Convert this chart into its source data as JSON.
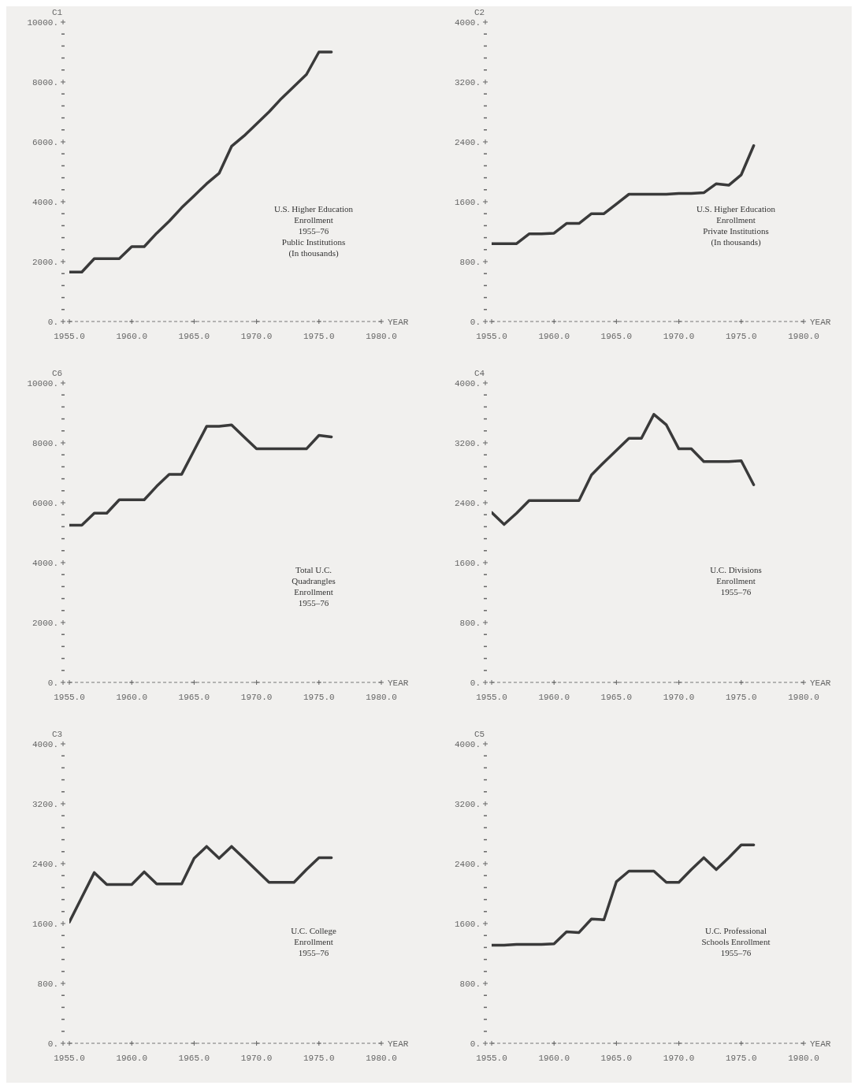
{
  "chart_data": [
    {
      "type": "line",
      "ylabel": "C1",
      "xlabel": "YEAR",
      "annotations": [
        "U.S. Higher Education",
        "Enrollment",
        "1955–76",
        "Public Institutions",
        "(In thousands)"
      ],
      "x": [
        1955,
        1956,
        1957,
        1958,
        1959,
        1960,
        1961,
        1962,
        1963,
        1964,
        1965,
        1966,
        1967,
        1968,
        1969,
        1970,
        1971,
        1972,
        1973,
        1974,
        1975,
        1976
      ],
      "series": [
        {
          "color": "#3a3a3a",
          "values": [
            1650,
            1650,
            2100,
            2100,
            2100,
            2500,
            2500,
            2950,
            3350,
            3800,
            4200,
            4600,
            4950,
            5850,
            6200,
            6600,
            7000,
            7450,
            7850,
            8250,
            9000,
            9000
          ]
        }
      ],
      "xlim": [
        1955,
        1980
      ],
      "xticks": [
        {
          "value": 1955,
          "label": "1955.0"
        },
        {
          "value": 1960,
          "label": "1960.0"
        },
        {
          "value": 1965,
          "label": "1965.0"
        },
        {
          "value": 1970,
          "label": "1970.0"
        },
        {
          "value": 1975,
          "label": "1975.0"
        },
        {
          "value": 1980,
          "label": "1980.0"
        }
      ],
      "ylim": [
        0,
        10000
      ],
      "yticks": [
        {
          "value": 0,
          "label": "0."
        },
        {
          "value": 400,
          "label": null
        },
        {
          "value": 800,
          "label": null
        },
        {
          "value": 1200,
          "label": null
        },
        {
          "value": 1600,
          "label": null
        },
        {
          "value": 2000,
          "label": "2000."
        },
        {
          "value": 2400,
          "label": null
        },
        {
          "value": 2800,
          "label": null
        },
        {
          "value": 3200,
          "label": null
        },
        {
          "value": 3600,
          "label": null
        },
        {
          "value": 4000,
          "label": "4000."
        },
        {
          "value": 4400,
          "label": null
        },
        {
          "value": 4800,
          "label": null
        },
        {
          "value": 5200,
          "label": null
        },
        {
          "value": 5600,
          "label": null
        },
        {
          "value": 6000,
          "label": "6000."
        },
        {
          "value": 6400,
          "label": null
        },
        {
          "value": 6800,
          "label": null
        },
        {
          "value": 7200,
          "label": null
        },
        {
          "value": 7600,
          "label": null
        },
        {
          "value": 8000,
          "label": "8000."
        },
        {
          "value": 8400,
          "label": null
        },
        {
          "value": 8800,
          "label": null
        },
        {
          "value": 9200,
          "label": null
        },
        {
          "value": 9600,
          "label": null
        },
        {
          "value": 10000,
          "label": "10000."
        }
      ]
    },
    {
      "type": "line",
      "ylabel": "C2",
      "xlabel": "YEAR",
      "annotations": [
        "U.S. Higher Education",
        "Enrollment",
        "Private Institutions",
        "(In thousands)"
      ],
      "x": [
        1955,
        1956,
        1957,
        1958,
        1959,
        1960,
        1961,
        1962,
        1963,
        1964,
        1965,
        1966,
        1967,
        1968,
        1969,
        1970,
        1971,
        1972,
        1973,
        1974,
        1975,
        1976
      ],
      "series": [
        {
          "color": "#3a3a3a",
          "values": [
            1040,
            1040,
            1040,
            1170,
            1170,
            1180,
            1310,
            1310,
            1440,
            1440,
            1570,
            1700,
            1700,
            1700,
            1700,
            1710,
            1710,
            1720,
            1840,
            1820,
            1960,
            2350
          ]
        }
      ],
      "xlim": [
        1955,
        1980
      ],
      "xticks": [
        {
          "value": 1955,
          "label": "1955.0"
        },
        {
          "value": 1960,
          "label": "1960.0"
        },
        {
          "value": 1965,
          "label": "1965.0"
        },
        {
          "value": 1970,
          "label": "1970.0"
        },
        {
          "value": 1975,
          "label": "1975.0"
        },
        {
          "value": 1980,
          "label": "1980.0"
        }
      ],
      "ylim": [
        0,
        4000
      ],
      "yticks": [
        {
          "value": 0,
          "label": "0."
        },
        {
          "value": 160,
          "label": null
        },
        {
          "value": 320,
          "label": null
        },
        {
          "value": 480,
          "label": null
        },
        {
          "value": 640,
          "label": null
        },
        {
          "value": 800,
          "label": "800."
        },
        {
          "value": 960,
          "label": null
        },
        {
          "value": 1120,
          "label": null
        },
        {
          "value": 1280,
          "label": null
        },
        {
          "value": 1440,
          "label": null
        },
        {
          "value": 1600,
          "label": "1600."
        },
        {
          "value": 1760,
          "label": null
        },
        {
          "value": 1920,
          "label": null
        },
        {
          "value": 2080,
          "label": null
        },
        {
          "value": 2240,
          "label": null
        },
        {
          "value": 2400,
          "label": "2400."
        },
        {
          "value": 2560,
          "label": null
        },
        {
          "value": 2720,
          "label": null
        },
        {
          "value": 2880,
          "label": null
        },
        {
          "value": 3040,
          "label": null
        },
        {
          "value": 3200,
          "label": "3200."
        },
        {
          "value": 3360,
          "label": null
        },
        {
          "value": 3520,
          "label": null
        },
        {
          "value": 3680,
          "label": null
        },
        {
          "value": 3840,
          "label": null
        },
        {
          "value": 4000,
          "label": "4000."
        }
      ]
    },
    {
      "type": "line",
      "ylabel": "C6",
      "xlabel": "YEAR",
      "annotations": [
        "Total U.C.",
        "Quadrangles",
        "Enrollment",
        "1955–76"
      ],
      "x": [
        1955,
        1956,
        1957,
        1958,
        1959,
        1960,
        1961,
        1962,
        1963,
        1964,
        1965,
        1966,
        1967,
        1968,
        1969,
        1970,
        1971,
        1972,
        1973,
        1974,
        1975,
        1976
      ],
      "series": [
        {
          "color": "#3a3a3a",
          "values": [
            5250,
            5250,
            5650,
            5650,
            6100,
            6100,
            6100,
            6550,
            6950,
            6950,
            7750,
            8550,
            8550,
            8600,
            8200,
            7800,
            7800,
            7800,
            7800,
            7800,
            8250,
            8200
          ]
        }
      ],
      "xlim": [
        1955,
        1980
      ],
      "xticks": [
        {
          "value": 1955,
          "label": "1955.0"
        },
        {
          "value": 1960,
          "label": "1960.0"
        },
        {
          "value": 1965,
          "label": "1965.0"
        },
        {
          "value": 1970,
          "label": "1970.0"
        },
        {
          "value": 1975,
          "label": "1975.0"
        },
        {
          "value": 1980,
          "label": "1980.0"
        }
      ],
      "ylim": [
        0,
        10000
      ],
      "yticks": [
        {
          "value": 0,
          "label": "0."
        },
        {
          "value": 400,
          "label": null
        },
        {
          "value": 800,
          "label": null
        },
        {
          "value": 1200,
          "label": null
        },
        {
          "value": 1600,
          "label": null
        },
        {
          "value": 2000,
          "label": "2000."
        },
        {
          "value": 2400,
          "label": null
        },
        {
          "value": 2800,
          "label": null
        },
        {
          "value": 3200,
          "label": null
        },
        {
          "value": 3600,
          "label": null
        },
        {
          "value": 4000,
          "label": "4000."
        },
        {
          "value": 4400,
          "label": null
        },
        {
          "value": 4800,
          "label": null
        },
        {
          "value": 5200,
          "label": null
        },
        {
          "value": 5600,
          "label": null
        },
        {
          "value": 6000,
          "label": "6000."
        },
        {
          "value": 6400,
          "label": null
        },
        {
          "value": 6800,
          "label": null
        },
        {
          "value": 7200,
          "label": null
        },
        {
          "value": 7600,
          "label": null
        },
        {
          "value": 8000,
          "label": "8000."
        },
        {
          "value": 8400,
          "label": null
        },
        {
          "value": 8800,
          "label": null
        },
        {
          "value": 9200,
          "label": null
        },
        {
          "value": 9600,
          "label": null
        },
        {
          "value": 10000,
          "label": "10000."
        }
      ]
    },
    {
      "type": "line",
      "ylabel": "C4",
      "xlabel": "YEAR",
      "annotations": [
        "U.C. Divisions",
        "Enrollment",
        "1955–76"
      ],
      "x": [
        1955,
        1956,
        1957,
        1958,
        1959,
        1960,
        1961,
        1962,
        1963,
        1964,
        1965,
        1966,
        1967,
        1968,
        1969,
        1970,
        1971,
        1972,
        1973,
        1974,
        1975,
        1976
      ],
      "series": [
        {
          "color": "#3a3a3a",
          "values": [
            2270,
            2110,
            2260,
            2430,
            2430,
            2430,
            2430,
            2430,
            2770,
            2940,
            3100,
            3260,
            3260,
            3580,
            3440,
            3120,
            3120,
            2950,
            2950,
            2950,
            2960,
            2640
          ]
        }
      ],
      "xlim": [
        1955,
        1980
      ],
      "xticks": [
        {
          "value": 1955,
          "label": "1955.0"
        },
        {
          "value": 1960,
          "label": "1960.0"
        },
        {
          "value": 1965,
          "label": "1965.0"
        },
        {
          "value": 1970,
          "label": "1970.0"
        },
        {
          "value": 1975,
          "label": "1975.0"
        },
        {
          "value": 1980,
          "label": "1980.0"
        }
      ],
      "ylim": [
        0,
        4000
      ],
      "yticks": [
        {
          "value": 0,
          "label": "0."
        },
        {
          "value": 160,
          "label": null
        },
        {
          "value": 320,
          "label": null
        },
        {
          "value": 480,
          "label": null
        },
        {
          "value": 640,
          "label": null
        },
        {
          "value": 800,
          "label": "800."
        },
        {
          "value": 960,
          "label": null
        },
        {
          "value": 1120,
          "label": null
        },
        {
          "value": 1280,
          "label": null
        },
        {
          "value": 1440,
          "label": null
        },
        {
          "value": 1600,
          "label": "1600."
        },
        {
          "value": 1760,
          "label": null
        },
        {
          "value": 1920,
          "label": null
        },
        {
          "value": 2080,
          "label": null
        },
        {
          "value": 2240,
          "label": null
        },
        {
          "value": 2400,
          "label": "2400."
        },
        {
          "value": 2560,
          "label": null
        },
        {
          "value": 2720,
          "label": null
        },
        {
          "value": 2880,
          "label": null
        },
        {
          "value": 3040,
          "label": null
        },
        {
          "value": 3200,
          "label": "3200."
        },
        {
          "value": 3360,
          "label": null
        },
        {
          "value": 3520,
          "label": null
        },
        {
          "value": 3680,
          "label": null
        },
        {
          "value": 3840,
          "label": null
        },
        {
          "value": 4000,
          "label": "4000."
        }
      ]
    },
    {
      "type": "line",
      "ylabel": "C3",
      "xlabel": "YEAR",
      "annotations": [
        "U.C. College",
        "Enrollment",
        "1955–76"
      ],
      "x": [
        1955,
        1956,
        1957,
        1958,
        1959,
        1960,
        1961,
        1962,
        1963,
        1964,
        1965,
        1966,
        1967,
        1968,
        1969,
        1970,
        1971,
        1972,
        1973,
        1974,
        1975,
        1976
      ],
      "series": [
        {
          "color": "#3a3a3a",
          "values": [
            1620,
            1950,
            2280,
            2120,
            2120,
            2120,
            2290,
            2130,
            2130,
            2130,
            2470,
            2630,
            2470,
            2630,
            2470,
            2310,
            2150,
            2150,
            2150,
            2320,
            2480,
            2480
          ]
        }
      ],
      "xlim": [
        1955,
        1980
      ],
      "xticks": [
        {
          "value": 1955,
          "label": "1955.0"
        },
        {
          "value": 1960,
          "label": "1960.0"
        },
        {
          "value": 1965,
          "label": "1965.0"
        },
        {
          "value": 1970,
          "label": "1970.0"
        },
        {
          "value": 1975,
          "label": "1975.0"
        },
        {
          "value": 1980,
          "label": "1980.0"
        }
      ],
      "ylim": [
        0,
        4000
      ],
      "yticks": [
        {
          "value": 0,
          "label": "0."
        },
        {
          "value": 160,
          "label": null
        },
        {
          "value": 320,
          "label": null
        },
        {
          "value": 480,
          "label": null
        },
        {
          "value": 640,
          "label": null
        },
        {
          "value": 800,
          "label": "800."
        },
        {
          "value": 960,
          "label": null
        },
        {
          "value": 1120,
          "label": null
        },
        {
          "value": 1280,
          "label": null
        },
        {
          "value": 1440,
          "label": null
        },
        {
          "value": 1600,
          "label": "1600."
        },
        {
          "value": 1760,
          "label": null
        },
        {
          "value": 1920,
          "label": null
        },
        {
          "value": 2080,
          "label": null
        },
        {
          "value": 2240,
          "label": null
        },
        {
          "value": 2400,
          "label": "2400."
        },
        {
          "value": 2560,
          "label": null
        },
        {
          "value": 2720,
          "label": null
        },
        {
          "value": 2880,
          "label": null
        },
        {
          "value": 3040,
          "label": null
        },
        {
          "value": 3200,
          "label": "3200."
        },
        {
          "value": 3360,
          "label": null
        },
        {
          "value": 3520,
          "label": null
        },
        {
          "value": 3680,
          "label": null
        },
        {
          "value": 3840,
          "label": null
        },
        {
          "value": 4000,
          "label": "4000."
        }
      ]
    },
    {
      "type": "line",
      "ylabel": "C5",
      "xlabel": "YEAR",
      "annotations": [
        "U.C. Professional",
        "Schools Enrollment",
        "1955–76"
      ],
      "x": [
        1955,
        1956,
        1957,
        1958,
        1959,
        1960,
        1961,
        1962,
        1963,
        1964,
        1965,
        1966,
        1967,
        1968,
        1969,
        1970,
        1971,
        1972,
        1973,
        1974,
        1975,
        1976
      ],
      "series": [
        {
          "color": "#3a3a3a",
          "values": [
            1310,
            1310,
            1320,
            1320,
            1320,
            1330,
            1490,
            1480,
            1660,
            1650,
            2160,
            2300,
            2300,
            2300,
            2150,
            2150,
            2320,
            2480,
            2320,
            2480,
            2650,
            2650
          ]
        }
      ],
      "xlim": [
        1955,
        1980
      ],
      "xticks": [
        {
          "value": 1955,
          "label": "1955.0"
        },
        {
          "value": 1960,
          "label": "1960.0"
        },
        {
          "value": 1965,
          "label": "1965.0"
        },
        {
          "value": 1970,
          "label": "1970.0"
        },
        {
          "value": 1975,
          "label": "1975.0"
        },
        {
          "value": 1980,
          "label": "1980.0"
        }
      ],
      "ylim": [
        0,
        4000
      ],
      "yticks": [
        {
          "value": 0,
          "label": "0."
        },
        {
          "value": 160,
          "label": null
        },
        {
          "value": 320,
          "label": null
        },
        {
          "value": 480,
          "label": null
        },
        {
          "value": 640,
          "label": null
        },
        {
          "value": 800,
          "label": "800."
        },
        {
          "value": 960,
          "label": null
        },
        {
          "value": 1120,
          "label": null
        },
        {
          "value": 1280,
          "label": null
        },
        {
          "value": 1440,
          "label": null
        },
        {
          "value": 1600,
          "label": "1600."
        },
        {
          "value": 1760,
          "label": null
        },
        {
          "value": 1920,
          "label": null
        },
        {
          "value": 2080,
          "label": null
        },
        {
          "value": 2240,
          "label": null
        },
        {
          "value": 2400,
          "label": "2400."
        },
        {
          "value": 2560,
          "label": null
        },
        {
          "value": 2720,
          "label": null
        },
        {
          "value": 2880,
          "label": null
        },
        {
          "value": 3040,
          "label": null
        },
        {
          "value": 3200,
          "label": "3200."
        },
        {
          "value": 3360,
          "label": null
        },
        {
          "value": 3520,
          "label": null
        },
        {
          "value": 3680,
          "label": null
        },
        {
          "value": 3840,
          "label": null
        },
        {
          "value": 4000,
          "label": "4000."
        }
      ]
    }
  ]
}
